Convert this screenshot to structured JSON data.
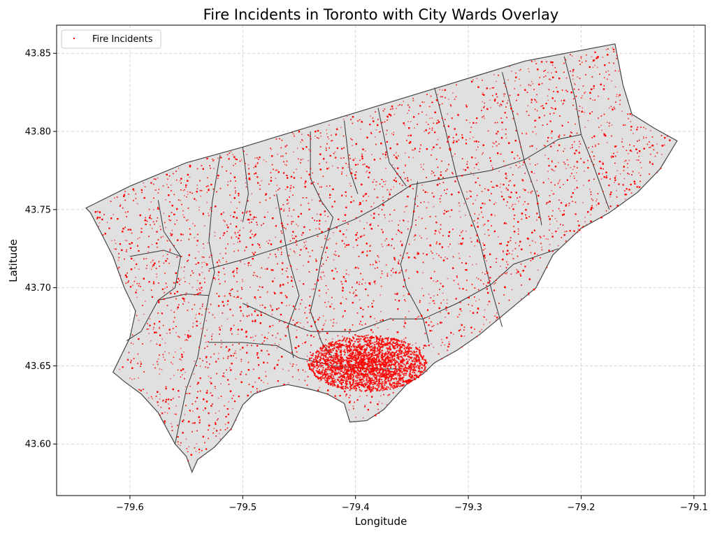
{
  "chart_data": {
    "type": "scatter",
    "title": "Fire Incidents in Toronto with City Wards Overlay",
    "xlabel": "Longitude",
    "ylabel": "Latitude",
    "xlim": [
      -79.665,
      -79.09
    ],
    "ylim": [
      43.567,
      43.868
    ],
    "xticks": [
      -79.6,
      -79.5,
      -79.4,
      -79.3,
      -79.2,
      -79.1
    ],
    "xtick_labels": [
      "−79.6",
      "−79.5",
      "−79.4",
      "−79.3",
      "−79.2",
      "−79.1"
    ],
    "yticks": [
      43.6,
      43.65,
      43.7,
      43.75,
      43.8,
      43.85
    ],
    "ytick_labels": [
      "43.60",
      "43.65",
      "43.70",
      "43.75",
      "43.80",
      "43.85"
    ],
    "grid": true,
    "legend": {
      "placement": "top-left",
      "entries": [
        {
          "label": "Fire Incidents",
          "color": "#ff0000"
        }
      ]
    },
    "series": [
      {
        "name": "Fire Incidents",
        "color": "#ff0000"
      }
    ],
    "boundary": {
      "fill": "#e0e0e0",
      "stroke": "#444444",
      "outline": [
        [
          -79.639,
          43.751
        ],
        [
          -79.6,
          43.765
        ],
        [
          -79.55,
          43.78
        ],
        [
          -79.5,
          43.79
        ],
        [
          -79.45,
          43.801
        ],
        [
          -79.4,
          43.812
        ],
        [
          -79.35,
          43.823
        ],
        [
          -79.3,
          43.834
        ],
        [
          -79.25,
          43.845
        ],
        [
          -79.17,
          43.856
        ],
        [
          -79.163,
          43.83
        ],
        [
          -79.155,
          43.811
        ],
        [
          -79.135,
          43.802
        ],
        [
          -79.115,
          43.794
        ],
        [
          -79.13,
          43.776
        ],
        [
          -79.15,
          43.761
        ],
        [
          -79.175,
          43.748
        ],
        [
          -79.2,
          43.738
        ],
        [
          -79.225,
          43.721
        ],
        [
          -79.24,
          43.7
        ],
        [
          -79.265,
          43.685
        ],
        [
          -79.29,
          43.67
        ],
        [
          -79.31,
          43.66
        ],
        [
          -79.33,
          43.652
        ],
        [
          -79.34,
          43.645
        ],
        [
          -79.355,
          43.638
        ],
        [
          -79.365,
          43.63
        ],
        [
          -79.375,
          43.622
        ],
        [
          -79.39,
          43.615
        ],
        [
          -79.405,
          43.614
        ],
        [
          -79.41,
          43.626
        ],
        [
          -79.425,
          43.632
        ],
        [
          -79.44,
          43.635
        ],
        [
          -79.46,
          43.638
        ],
        [
          -79.475,
          43.636
        ],
        [
          -79.49,
          43.632
        ],
        [
          -79.5,
          43.625
        ],
        [
          -79.51,
          43.61
        ],
        [
          -79.525,
          43.598
        ],
        [
          -79.54,
          43.59
        ],
        [
          -79.545,
          43.582
        ],
        [
          -79.55,
          43.592
        ],
        [
          -79.56,
          43.6
        ],
        [
          -79.575,
          43.62
        ],
        [
          -79.59,
          43.632
        ],
        [
          -79.605,
          43.64
        ],
        [
          -79.615,
          43.646
        ],
        [
          -79.6,
          43.668
        ],
        [
          -79.595,
          43.685
        ],
        [
          -79.605,
          43.7
        ],
        [
          -79.615,
          43.72
        ],
        [
          -79.627,
          43.737
        ],
        [
          -79.635,
          43.748
        ]
      ],
      "wards": [
        [
          [
            -79.575,
            43.756
          ],
          [
            -79.57,
            43.736
          ],
          [
            -79.555,
            43.72
          ],
          [
            -79.56,
            43.7
          ],
          [
            -79.575,
            43.692
          ],
          [
            -79.59,
            43.672
          ],
          [
            -79.603,
            43.666
          ]
        ],
        [
          [
            -79.52,
            43.785
          ],
          [
            -79.527,
            43.755
          ],
          [
            -79.53,
            43.73
          ],
          [
            -79.525,
            43.71
          ],
          [
            -79.53,
            43.695
          ],
          [
            -79.535,
            43.675
          ],
          [
            -79.54,
            43.655
          ],
          [
            -79.55,
            43.635
          ],
          [
            -79.56,
            43.6
          ]
        ],
        [
          [
            -79.575,
            43.692
          ],
          [
            -79.55,
            43.696
          ],
          [
            -79.53,
            43.695
          ]
        ],
        [
          [
            -79.53,
            43.712
          ],
          [
            -79.5,
            43.718
          ],
          [
            -79.47,
            43.725
          ],
          [
            -79.43,
            43.735
          ],
          [
            -79.4,
            43.744
          ],
          [
            -79.38,
            43.752
          ],
          [
            -79.35,
            43.766
          ],
          [
            -79.32,
            43.77
          ],
          [
            -79.28,
            43.775
          ],
          [
            -79.25,
            43.782
          ],
          [
            -79.22,
            43.795
          ],
          [
            -79.2,
            43.798
          ]
        ],
        [
          [
            -79.5,
            43.79
          ],
          [
            -79.495,
            43.76
          ],
          [
            -79.5,
            43.742
          ]
        ],
        [
          [
            -79.47,
            43.76
          ],
          [
            -79.465,
            43.74
          ],
          [
            -79.46,
            43.72
          ],
          [
            -79.45,
            43.695
          ],
          [
            -79.46,
            43.675
          ],
          [
            -79.455,
            43.655
          ]
        ],
        [
          [
            -79.44,
            43.8
          ],
          [
            -79.44,
            43.77
          ],
          [
            -79.43,
            43.755
          ],
          [
            -79.42,
            43.745
          ]
        ],
        [
          [
            -79.41,
            43.807
          ],
          [
            -79.405,
            43.775
          ],
          [
            -79.398,
            43.76
          ]
        ],
        [
          [
            -79.38,
            43.815
          ],
          [
            -79.37,
            43.78
          ],
          [
            -79.355,
            43.765
          ]
        ],
        [
          [
            -79.33,
            43.828
          ],
          [
            -79.32,
            43.8
          ],
          [
            -79.31,
            43.77
          ],
          [
            -79.29,
            43.73
          ],
          [
            -79.28,
            43.7
          ],
          [
            -79.27,
            43.675
          ]
        ],
        [
          [
            -79.27,
            43.838
          ],
          [
            -79.26,
            43.81
          ],
          [
            -79.25,
            43.78
          ],
          [
            -79.24,
            43.76
          ],
          [
            -79.235,
            43.74
          ]
        ],
        [
          [
            -79.215,
            43.848
          ],
          [
            -79.205,
            43.82
          ],
          [
            -79.2,
            43.798
          ],
          [
            -79.19,
            43.78
          ],
          [
            -79.175,
            43.75
          ]
        ],
        [
          [
            -79.42,
            43.745
          ],
          [
            -79.43,
            43.72
          ],
          [
            -79.435,
            43.7
          ],
          [
            -79.44,
            43.685
          ],
          [
            -79.43,
            43.665
          ],
          [
            -79.42,
            43.655
          ]
        ],
        [
          [
            -79.345,
            43.768
          ],
          [
            -79.35,
            43.74
          ],
          [
            -79.36,
            43.715
          ],
          [
            -79.355,
            43.7
          ],
          [
            -79.34,
            43.68
          ],
          [
            -79.335,
            43.665
          ]
        ],
        [
          [
            -79.5,
            43.69
          ],
          [
            -79.47,
            43.68
          ],
          [
            -79.44,
            43.672
          ],
          [
            -79.4,
            43.672
          ],
          [
            -79.37,
            43.68
          ],
          [
            -79.34,
            43.68
          ],
          [
            -79.31,
            43.69
          ],
          [
            -79.28,
            43.702
          ],
          [
            -79.26,
            43.715
          ],
          [
            -79.22,
            43.725
          ]
        ],
        [
          [
            -79.53,
            43.665
          ],
          [
            -79.5,
            43.665
          ],
          [
            -79.47,
            43.663
          ],
          [
            -79.45,
            43.655
          ],
          [
            -79.42,
            43.65
          ],
          [
            -79.39,
            43.648
          ],
          [
            -79.36,
            43.648
          ]
        ],
        [
          [
            -79.6,
            43.72
          ],
          [
            -79.57,
            43.724
          ],
          [
            -79.555,
            43.72
          ]
        ]
      ]
    }
  }
}
